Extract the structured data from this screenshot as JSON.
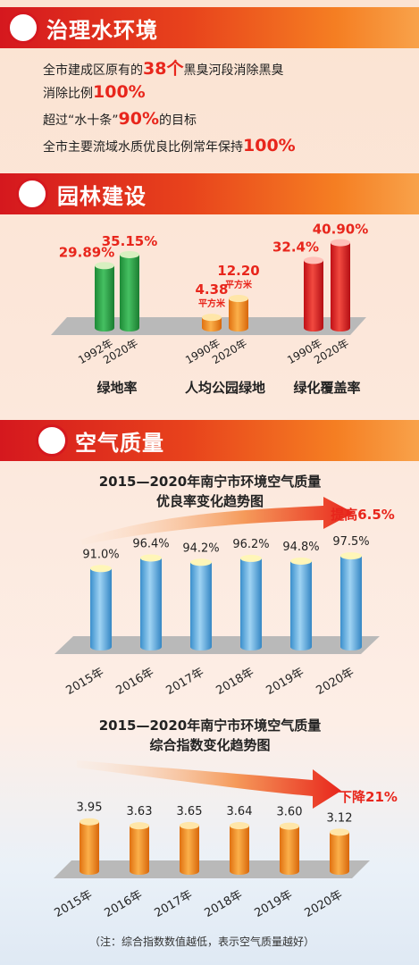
{
  "section1": {
    "title": "治理水环境",
    "lines": [
      {
        "pre": "全市建成区原有的",
        "hl": "38个",
        "post": "黑臭河段消除黑臭"
      },
      {
        "pre": "消除比例",
        "hl": "100%",
        "post": ""
      },
      {
        "pre": "超过“水十条”",
        "hl": "90%",
        "post": "的目标"
      },
      {
        "pre": "全市主要流域水质优良比例常年保持",
        "hl": "100%",
        "post": ""
      }
    ]
  },
  "section2": {
    "title": "园林建设",
    "groups": [
      {
        "label": "绿地率",
        "years": [
          "1992年",
          "2020年"
        ],
        "value_labels": [
          "29.89%",
          "35.15%"
        ],
        "color": "green"
      },
      {
        "label": "人均公园绿地",
        "years": [
          "1990年",
          "2020年"
        ],
        "value_labels": [
          "4.38",
          "12.20"
        ],
        "units": [
          "平方米",
          "平方米"
        ],
        "color": "orange"
      },
      {
        "label": "绿化覆盖率",
        "years": [
          "1990年",
          "2020年"
        ],
        "value_labels": [
          "32.4%",
          "40.90%"
        ],
        "color": "red"
      }
    ]
  },
  "section3": {
    "title": "空气质量",
    "note": "（注：综合指数数值越低，表示空气质量越好）"
  },
  "colors": {
    "green": "#2faa4a",
    "orange": "#f28a1a",
    "red": "#e8261c",
    "blue": "#5aaee0",
    "accent_red": "#e8261c"
  },
  "chart_data": [
    {
      "type": "bar",
      "title": "园林建设",
      "groups": [
        {
          "name": "绿地率",
          "categories": [
            "1992年",
            "2020年"
          ],
          "values": [
            29.89,
            35.15
          ],
          "unit": "%"
        },
        {
          "name": "人均公园绿地",
          "categories": [
            "1990年",
            "2020年"
          ],
          "values": [
            4.38,
            12.2
          ],
          "unit": "平方米"
        },
        {
          "name": "绿化覆盖率",
          "categories": [
            "1990年",
            "2020年"
          ],
          "values": [
            32.4,
            40.9
          ],
          "unit": "%"
        }
      ]
    },
    {
      "type": "bar",
      "title": "2015—2020年南宁市环境空气质量",
      "subtitle": "优良率变化趋势图",
      "categories": [
        "2015年",
        "2016年",
        "2017年",
        "2018年",
        "2019年",
        "2020年"
      ],
      "values": [
        91.0,
        96.4,
        94.2,
        96.2,
        94.8,
        97.5
      ],
      "value_labels": [
        "91.0%",
        "96.4%",
        "94.2%",
        "96.2%",
        "94.8%",
        "97.5%"
      ],
      "trend_label": "提高6.5%",
      "ylim": [
        0,
        100
      ]
    },
    {
      "type": "bar",
      "title": "2015—2020年南宁市环境空气质量",
      "subtitle": "综合指数变化趋势图",
      "categories": [
        "2015年",
        "2016年",
        "2017年",
        "2018年",
        "2019年",
        "2020年"
      ],
      "values": [
        3.95,
        3.63,
        3.65,
        3.64,
        3.6,
        3.12
      ],
      "value_labels": [
        "3.95",
        "3.63",
        "3.65",
        "3.64",
        "3.60",
        "3.12"
      ],
      "trend_label": "下降21%",
      "ylim": [
        0,
        4.5
      ]
    }
  ]
}
